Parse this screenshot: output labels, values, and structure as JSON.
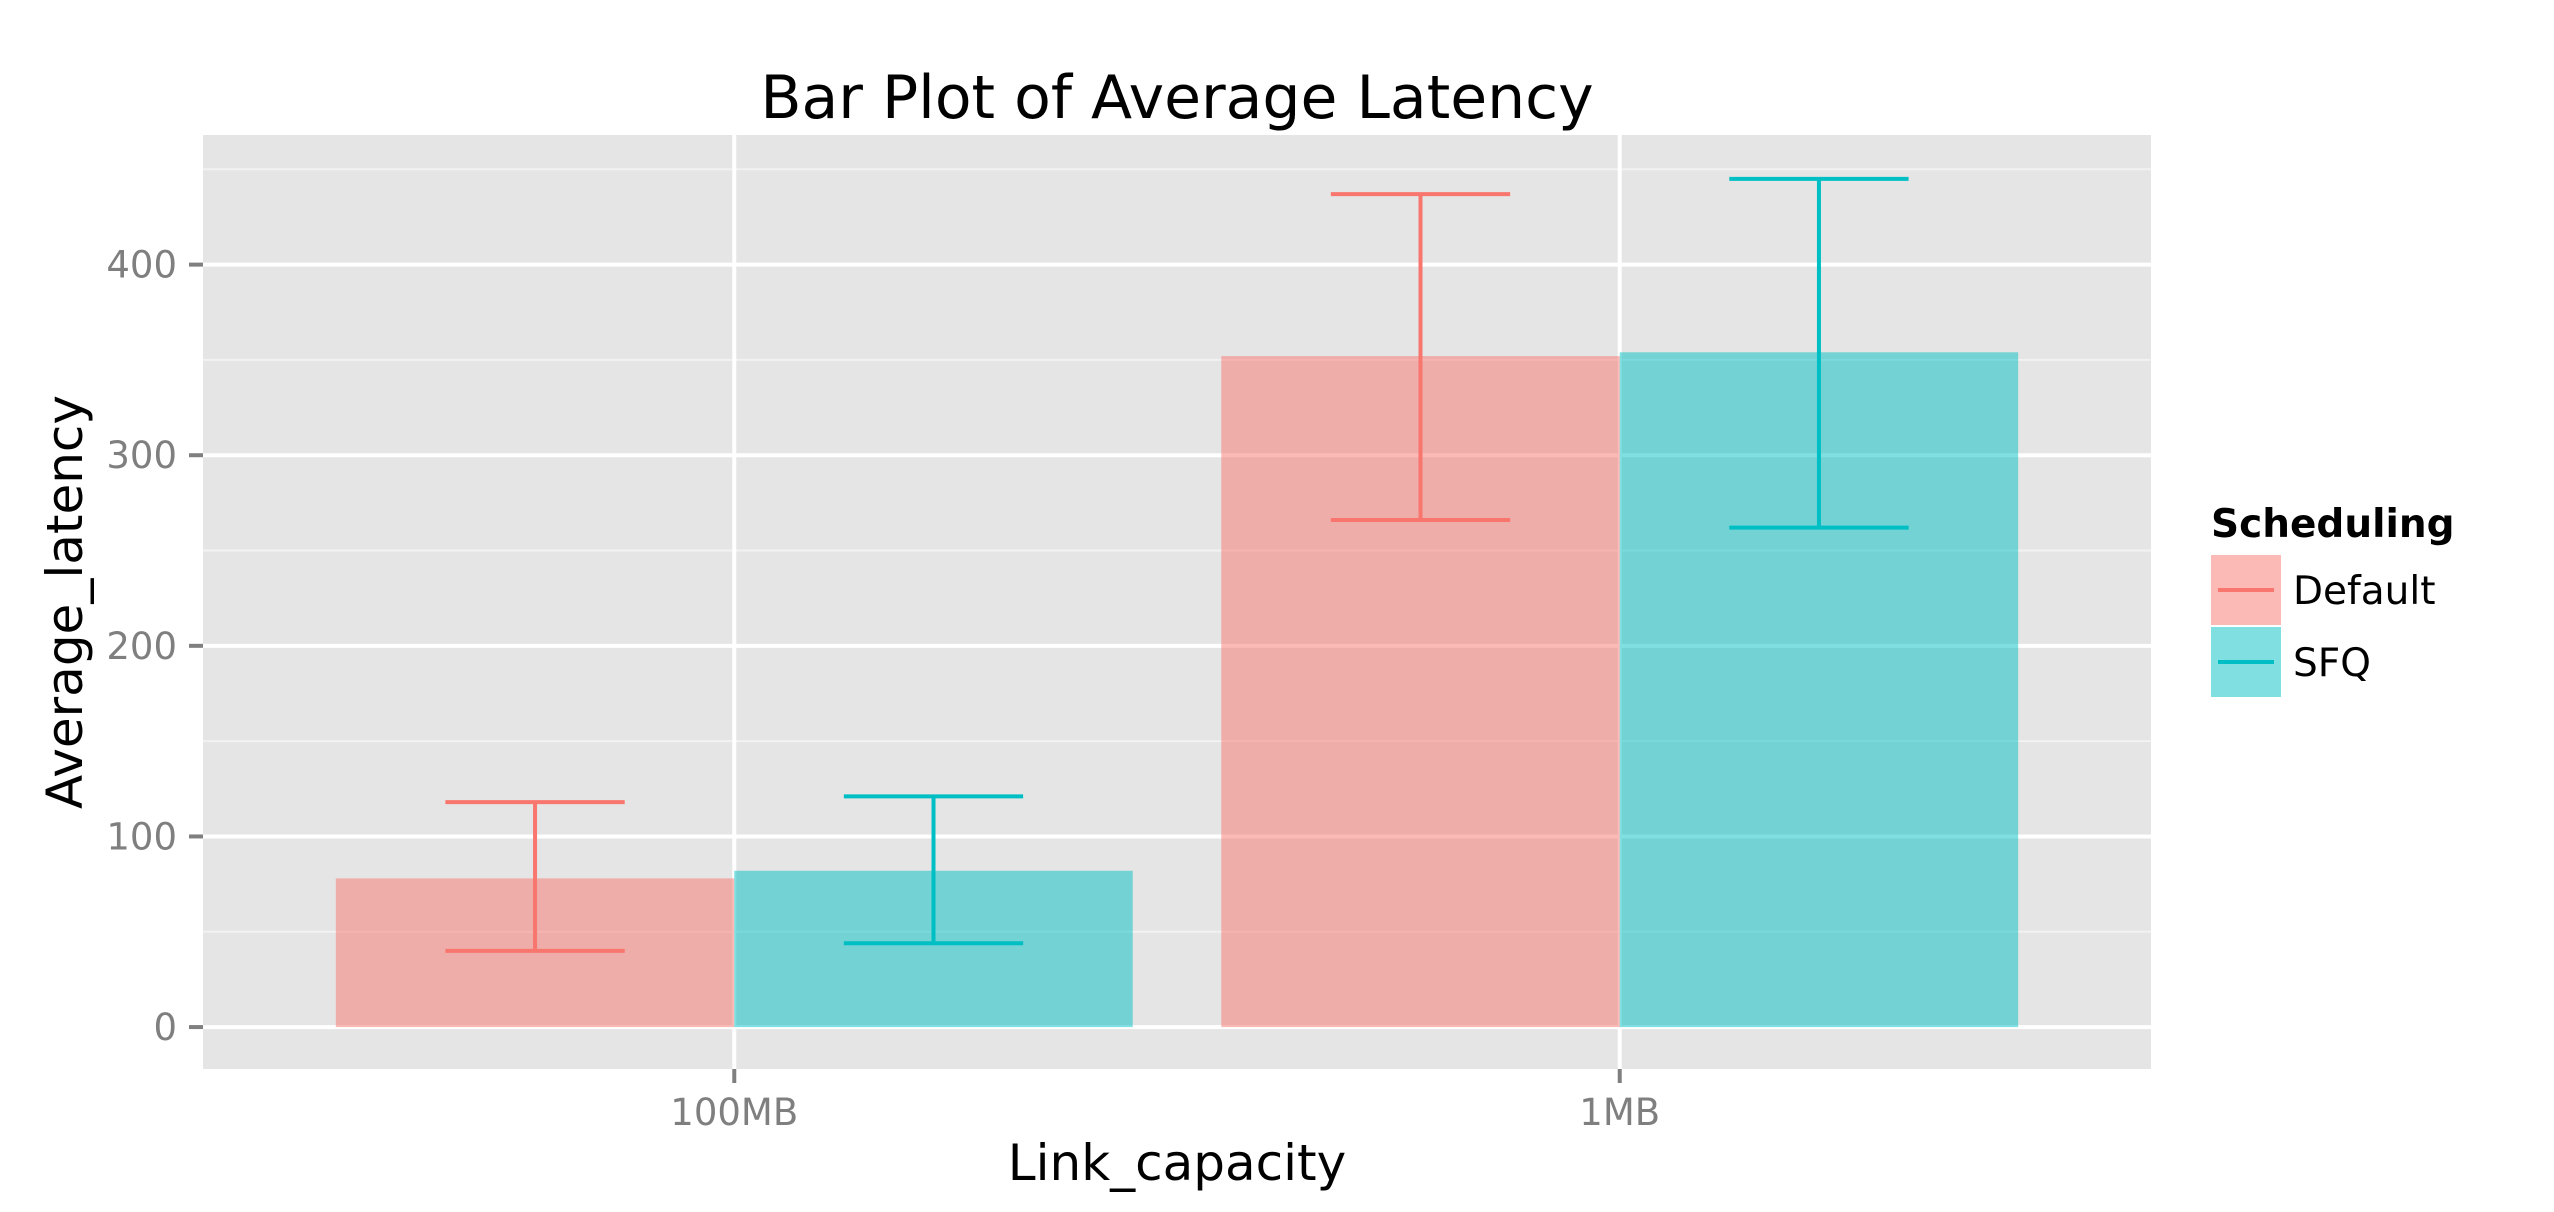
{
  "chart_data": {
    "type": "bar",
    "title": "Bar Plot of Average Latency",
    "xlabel": "Link_capacity",
    "ylabel": "Average_latency",
    "categories": [
      "100MB",
      "1MB"
    ],
    "ylim": [
      -22,
      468
    ],
    "yticks": [
      0,
      100,
      200,
      300,
      400
    ],
    "ytick_labels": [
      "0",
      "100",
      "200",
      "300",
      "400"
    ],
    "grid": true,
    "legend": {
      "title": "Scheduling",
      "placement": "right"
    },
    "series": [
      {
        "name": "Default",
        "color": "#f8766d",
        "values": [
          78,
          352
        ],
        "error_low": [
          40,
          266
        ],
        "error_high": [
          118,
          437
        ]
      },
      {
        "name": "SFQ",
        "color": "#00bfc4",
        "values": [
          82,
          354
        ],
        "error_low": [
          44,
          262
        ],
        "error_high": [
          121,
          445
        ]
      }
    ]
  }
}
